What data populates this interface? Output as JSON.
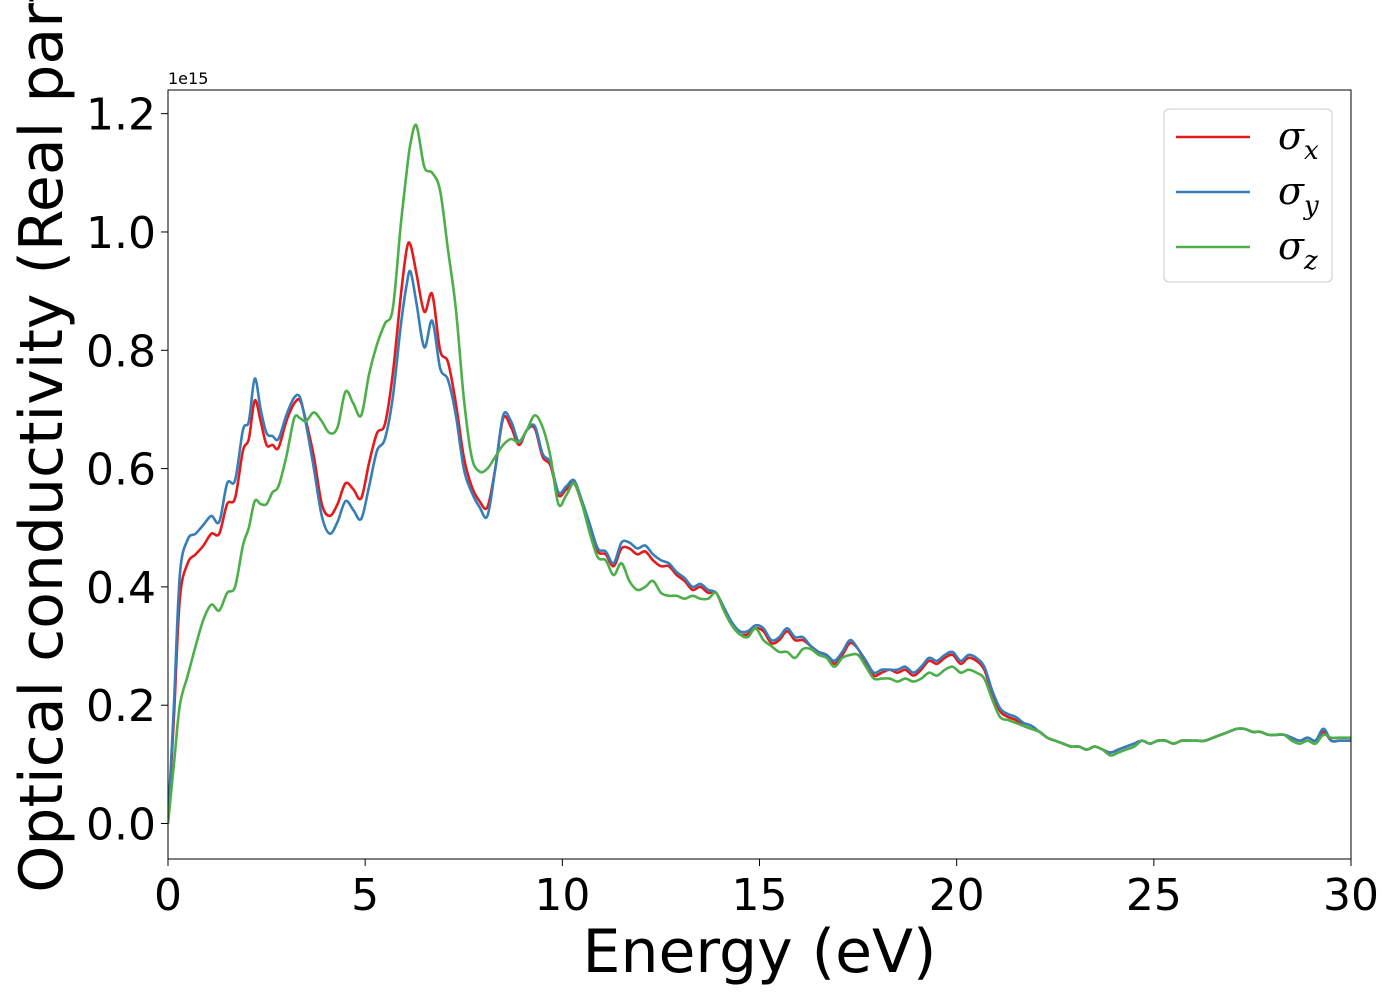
{
  "chart_data": {
    "type": "line",
    "xlabel": "Energy (eV)",
    "ylabel": "Optical conductivity (Real part)",
    "y_offset_text": "1e15",
    "xlim": [
      0,
      30
    ],
    "ylim": [
      -0.06,
      1.24
    ],
    "y_scale_factor": 1000000000000000.0,
    "xticks": [
      0,
      5,
      10,
      15,
      20,
      25,
      30
    ],
    "xtick_labels": [
      "0",
      "5",
      "10",
      "15",
      "20",
      "25",
      "30"
    ],
    "yticks": [
      0.0,
      0.2,
      0.4,
      0.6,
      0.8,
      1.0,
      1.2
    ],
    "ytick_labels": [
      "0.0",
      "0.2",
      "0.4",
      "0.6",
      "0.8",
      "1.0",
      "1.2"
    ],
    "grid": false,
    "legend_position": "top-right",
    "series": [
      {
        "name": "σx",
        "legend_symbol": "σ",
        "legend_sub": "x",
        "color": "#e41a1c",
        "x": [
          0,
          0.15,
          0.3,
          0.5,
          0.7,
          0.9,
          1.1,
          1.3,
          1.5,
          1.7,
          1.9,
          2.05,
          2.2,
          2.35,
          2.5,
          2.65,
          2.8,
          3.0,
          3.2,
          3.35,
          3.5,
          3.7,
          3.9,
          4.1,
          4.3,
          4.5,
          4.7,
          4.9,
          5.1,
          5.3,
          5.5,
          5.7,
          5.9,
          6.05,
          6.15,
          6.3,
          6.5,
          6.7,
          6.9,
          7.1,
          7.3,
          7.5,
          7.7,
          7.9,
          8.1,
          8.3,
          8.5,
          8.7,
          8.9,
          9.1,
          9.3,
          9.5,
          9.7,
          9.9,
          10.1,
          10.3,
          10.5,
          10.7,
          10.9,
          11.1,
          11.3,
          11.5,
          11.7,
          11.9,
          12.1,
          12.3,
          12.5,
          12.7,
          12.9,
          13.1,
          13.3,
          13.5,
          13.7,
          13.9,
          14.1,
          14.3,
          14.5,
          14.7,
          14.9,
          15.1,
          15.3,
          15.5,
          15.7,
          15.9,
          16.1,
          16.3,
          16.5,
          16.7,
          16.9,
          17.1,
          17.3,
          17.5,
          17.7,
          17.9,
          18.1,
          18.3,
          18.5,
          18.7,
          18.9,
          19.1,
          19.3,
          19.5,
          19.7,
          19.9,
          20.1,
          20.3,
          20.5,
          20.7,
          20.9,
          21.1,
          21.3,
          21.5,
          21.7,
          21.9,
          22.1,
          22.3,
          22.5,
          22.7,
          22.9,
          23.1,
          23.3,
          23.5,
          23.7,
          23.9,
          24.1,
          24.3,
          24.5,
          24.7,
          24.9,
          25.1,
          25.3,
          25.5,
          25.7,
          25.9,
          26.1,
          26.3,
          26.5,
          26.7,
          26.9,
          27.1,
          27.3,
          27.5,
          27.7,
          27.9,
          28.1,
          28.3,
          28.5,
          28.7,
          28.9,
          29.1,
          29.3,
          29.5,
          29.7,
          30
        ],
        "y": [
          0.0,
          0.18,
          0.38,
          0.44,
          0.455,
          0.47,
          0.49,
          0.49,
          0.54,
          0.55,
          0.63,
          0.65,
          0.715,
          0.68,
          0.64,
          0.64,
          0.635,
          0.68,
          0.71,
          0.715,
          0.68,
          0.62,
          0.54,
          0.52,
          0.54,
          0.575,
          0.565,
          0.55,
          0.61,
          0.66,
          0.675,
          0.76,
          0.89,
          0.97,
          0.978,
          0.93,
          0.865,
          0.895,
          0.8,
          0.78,
          0.71,
          0.62,
          0.57,
          0.545,
          0.535,
          0.6,
          0.685,
          0.67,
          0.64,
          0.665,
          0.668,
          0.62,
          0.605,
          0.555,
          0.565,
          0.575,
          0.54,
          0.5,
          0.46,
          0.455,
          0.435,
          0.465,
          0.465,
          0.455,
          0.46,
          0.445,
          0.435,
          0.435,
          0.42,
          0.41,
          0.395,
          0.4,
          0.39,
          0.39,
          0.36,
          0.335,
          0.32,
          0.32,
          0.33,
          0.325,
          0.305,
          0.31,
          0.325,
          0.31,
          0.31,
          0.3,
          0.29,
          0.285,
          0.27,
          0.285,
          0.305,
          0.295,
          0.27,
          0.25,
          0.255,
          0.26,
          0.255,
          0.26,
          0.25,
          0.26,
          0.275,
          0.27,
          0.28,
          0.285,
          0.27,
          0.28,
          0.275,
          0.26,
          0.22,
          0.19,
          0.18,
          0.175,
          0.165,
          0.16,
          0.155,
          0.145,
          0.14,
          0.135,
          0.13,
          0.13,
          0.125,
          0.13,
          0.125,
          0.12,
          0.125,
          0.13,
          0.135,
          0.14,
          0.135,
          0.14,
          0.14,
          0.135,
          0.14,
          0.14,
          0.14,
          0.14,
          0.145,
          0.15,
          0.155,
          0.16,
          0.16,
          0.155,
          0.155,
          0.15,
          0.15,
          0.15,
          0.145,
          0.14,
          0.145,
          0.14,
          0.155,
          0.14,
          0.14,
          0.14
        ]
      },
      {
        "name": "σy",
        "legend_symbol": "σ",
        "legend_sub": "y",
        "color": "#377eb8",
        "x": [
          0,
          0.15,
          0.3,
          0.5,
          0.7,
          0.9,
          1.1,
          1.3,
          1.5,
          1.7,
          1.9,
          2.05,
          2.2,
          2.35,
          2.5,
          2.65,
          2.8,
          3.0,
          3.2,
          3.35,
          3.5,
          3.7,
          3.9,
          4.1,
          4.3,
          4.5,
          4.7,
          4.9,
          5.1,
          5.3,
          5.5,
          5.7,
          5.9,
          6.05,
          6.15,
          6.3,
          6.5,
          6.7,
          6.9,
          7.1,
          7.3,
          7.5,
          7.7,
          7.9,
          8.1,
          8.3,
          8.5,
          8.7,
          8.9,
          9.1,
          9.3,
          9.5,
          9.7,
          9.9,
          10.1,
          10.3,
          10.5,
          10.7,
          10.9,
          11.1,
          11.3,
          11.5,
          11.7,
          11.9,
          12.1,
          12.3,
          12.5,
          12.7,
          12.9,
          13.1,
          13.3,
          13.5,
          13.7,
          13.9,
          14.1,
          14.3,
          14.5,
          14.7,
          14.9,
          15.1,
          15.3,
          15.5,
          15.7,
          15.9,
          16.1,
          16.3,
          16.5,
          16.7,
          16.9,
          17.1,
          17.3,
          17.5,
          17.7,
          17.9,
          18.1,
          18.3,
          18.5,
          18.7,
          18.9,
          19.1,
          19.3,
          19.5,
          19.7,
          19.9,
          20.1,
          20.3,
          20.5,
          20.7,
          20.9,
          21.1,
          21.3,
          21.5,
          21.7,
          21.9,
          22.1,
          22.3,
          22.5,
          22.7,
          22.9,
          23.1,
          23.3,
          23.5,
          23.7,
          23.9,
          24.1,
          24.3,
          24.5,
          24.7,
          24.9,
          25.1,
          25.3,
          25.5,
          25.7,
          25.9,
          26.1,
          26.3,
          26.5,
          26.7,
          26.9,
          27.1,
          27.3,
          27.5,
          27.7,
          27.9,
          28.1,
          28.3,
          28.5,
          28.7,
          28.9,
          29.1,
          29.3,
          29.5,
          29.7,
          30
        ],
        "y": [
          0.0,
          0.2,
          0.42,
          0.48,
          0.49,
          0.505,
          0.52,
          0.51,
          0.575,
          0.58,
          0.665,
          0.68,
          0.752,
          0.7,
          0.66,
          0.655,
          0.65,
          0.69,
          0.72,
          0.72,
          0.675,
          0.6,
          0.52,
          0.49,
          0.51,
          0.545,
          0.53,
          0.515,
          0.57,
          0.63,
          0.65,
          0.72,
          0.84,
          0.91,
          0.933,
          0.88,
          0.805,
          0.85,
          0.77,
          0.75,
          0.69,
          0.6,
          0.56,
          0.535,
          0.52,
          0.6,
          0.69,
          0.68,
          0.645,
          0.665,
          0.672,
          0.625,
          0.61,
          0.56,
          0.57,
          0.58,
          0.545,
          0.505,
          0.465,
          0.46,
          0.44,
          0.475,
          0.475,
          0.465,
          0.47,
          0.455,
          0.445,
          0.44,
          0.425,
          0.415,
          0.4,
          0.405,
          0.395,
          0.39,
          0.365,
          0.34,
          0.325,
          0.325,
          0.335,
          0.33,
          0.31,
          0.315,
          0.33,
          0.315,
          0.315,
          0.3,
          0.29,
          0.285,
          0.275,
          0.29,
          0.31,
          0.295,
          0.275,
          0.255,
          0.26,
          0.26,
          0.26,
          0.265,
          0.255,
          0.265,
          0.28,
          0.275,
          0.285,
          0.29,
          0.275,
          0.285,
          0.28,
          0.265,
          0.225,
          0.195,
          0.185,
          0.18,
          0.17,
          0.165,
          0.155,
          0.145,
          0.14,
          0.135,
          0.13,
          0.13,
          0.125,
          0.13,
          0.125,
          0.12,
          0.125,
          0.13,
          0.135,
          0.14,
          0.135,
          0.14,
          0.14,
          0.135,
          0.14,
          0.14,
          0.14,
          0.14,
          0.145,
          0.15,
          0.155,
          0.16,
          0.16,
          0.155,
          0.155,
          0.15,
          0.15,
          0.15,
          0.145,
          0.14,
          0.145,
          0.14,
          0.16,
          0.14,
          0.14,
          0.14
        ]
      },
      {
        "name": "σz",
        "legend_symbol": "σ",
        "legend_sub": "z",
        "color": "#4daf4a",
        "x": [
          0,
          0.15,
          0.3,
          0.5,
          0.7,
          0.9,
          1.1,
          1.3,
          1.5,
          1.7,
          1.9,
          2.05,
          2.2,
          2.35,
          2.5,
          2.65,
          2.8,
          3.0,
          3.2,
          3.35,
          3.5,
          3.7,
          3.9,
          4.1,
          4.3,
          4.5,
          4.7,
          4.9,
          5.1,
          5.3,
          5.5,
          5.7,
          5.9,
          6.05,
          6.15,
          6.3,
          6.5,
          6.7,
          6.9,
          7.1,
          7.3,
          7.5,
          7.7,
          7.9,
          8.1,
          8.3,
          8.5,
          8.7,
          8.9,
          9.1,
          9.3,
          9.5,
          9.7,
          9.9,
          10.1,
          10.3,
          10.5,
          10.7,
          10.9,
          11.1,
          11.3,
          11.5,
          11.7,
          11.9,
          12.1,
          12.3,
          12.5,
          12.7,
          12.9,
          13.1,
          13.3,
          13.5,
          13.7,
          13.9,
          14.1,
          14.3,
          14.5,
          14.7,
          14.9,
          15.1,
          15.3,
          15.5,
          15.7,
          15.9,
          16.1,
          16.3,
          16.5,
          16.7,
          16.9,
          17.1,
          17.3,
          17.5,
          17.7,
          17.9,
          18.1,
          18.3,
          18.5,
          18.7,
          18.9,
          19.1,
          19.3,
          19.5,
          19.7,
          19.9,
          20.1,
          20.3,
          20.5,
          20.7,
          20.9,
          21.1,
          21.3,
          21.5,
          21.7,
          21.9,
          22.1,
          22.3,
          22.5,
          22.7,
          22.9,
          23.1,
          23.3,
          23.5,
          23.7,
          23.9,
          24.1,
          24.3,
          24.5,
          24.7,
          24.9,
          25.1,
          25.3,
          25.5,
          25.7,
          25.9,
          26.1,
          26.3,
          26.5,
          26.7,
          26.9,
          27.1,
          27.3,
          27.5,
          27.7,
          27.9,
          28.1,
          28.3,
          28.5,
          28.7,
          28.9,
          29.1,
          29.3,
          29.5,
          29.7,
          30
        ],
        "y": [
          0.0,
          0.1,
          0.2,
          0.25,
          0.3,
          0.345,
          0.37,
          0.36,
          0.39,
          0.4,
          0.47,
          0.5,
          0.545,
          0.54,
          0.54,
          0.56,
          0.57,
          0.62,
          0.685,
          0.685,
          0.68,
          0.695,
          0.68,
          0.66,
          0.67,
          0.73,
          0.71,
          0.69,
          0.76,
          0.81,
          0.845,
          0.87,
          1.01,
          1.1,
          1.15,
          1.18,
          1.11,
          1.1,
          1.07,
          0.97,
          0.87,
          0.72,
          0.62,
          0.595,
          0.6,
          0.62,
          0.64,
          0.65,
          0.645,
          0.665,
          0.69,
          0.67,
          0.62,
          0.54,
          0.555,
          0.575,
          0.54,
          0.49,
          0.45,
          0.445,
          0.42,
          0.44,
          0.41,
          0.395,
          0.4,
          0.41,
          0.39,
          0.385,
          0.385,
          0.38,
          0.385,
          0.38,
          0.38,
          0.39,
          0.36,
          0.335,
          0.32,
          0.315,
          0.33,
          0.31,
          0.3,
          0.29,
          0.29,
          0.28,
          0.295,
          0.295,
          0.285,
          0.28,
          0.265,
          0.28,
          0.285,
          0.285,
          0.265,
          0.245,
          0.245,
          0.245,
          0.24,
          0.245,
          0.24,
          0.245,
          0.255,
          0.25,
          0.26,
          0.265,
          0.255,
          0.26,
          0.255,
          0.245,
          0.21,
          0.18,
          0.175,
          0.17,
          0.165,
          0.16,
          0.155,
          0.145,
          0.14,
          0.135,
          0.13,
          0.13,
          0.125,
          0.13,
          0.125,
          0.115,
          0.12,
          0.125,
          0.13,
          0.14,
          0.135,
          0.14,
          0.14,
          0.135,
          0.14,
          0.14,
          0.14,
          0.14,
          0.145,
          0.15,
          0.155,
          0.16,
          0.16,
          0.155,
          0.155,
          0.15,
          0.15,
          0.15,
          0.14,
          0.135,
          0.14,
          0.135,
          0.15,
          0.145,
          0.145,
          0.145
        ]
      }
    ]
  }
}
